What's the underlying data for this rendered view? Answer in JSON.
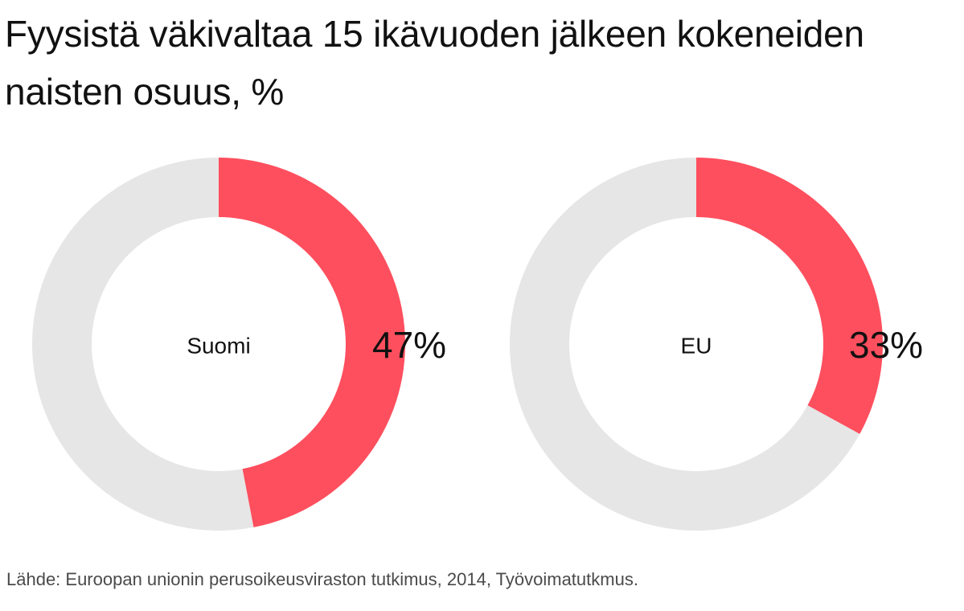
{
  "title": "Fyysistä väkivaltaa 15 ikävuoden jälkeen kokeneiden naisten osuus, %",
  "source": "Lähde: Euroopan unionin perusoikeusviraston tutkimus, 2014, Työvoimatutkmus.",
  "colors": {
    "highlight": "#fe4f5e",
    "remainder": "#e6e6e6",
    "text": "#111111",
    "source_text": "#4a4a4a"
  },
  "chart_data": [
    {
      "type": "pie",
      "variant": "donut",
      "label": "Suomi",
      "value": 47,
      "value_label": "47%",
      "total": 100
    },
    {
      "type": "pie",
      "variant": "donut",
      "label": "EU",
      "value": 33,
      "value_label": "33%",
      "total": 100
    }
  ]
}
